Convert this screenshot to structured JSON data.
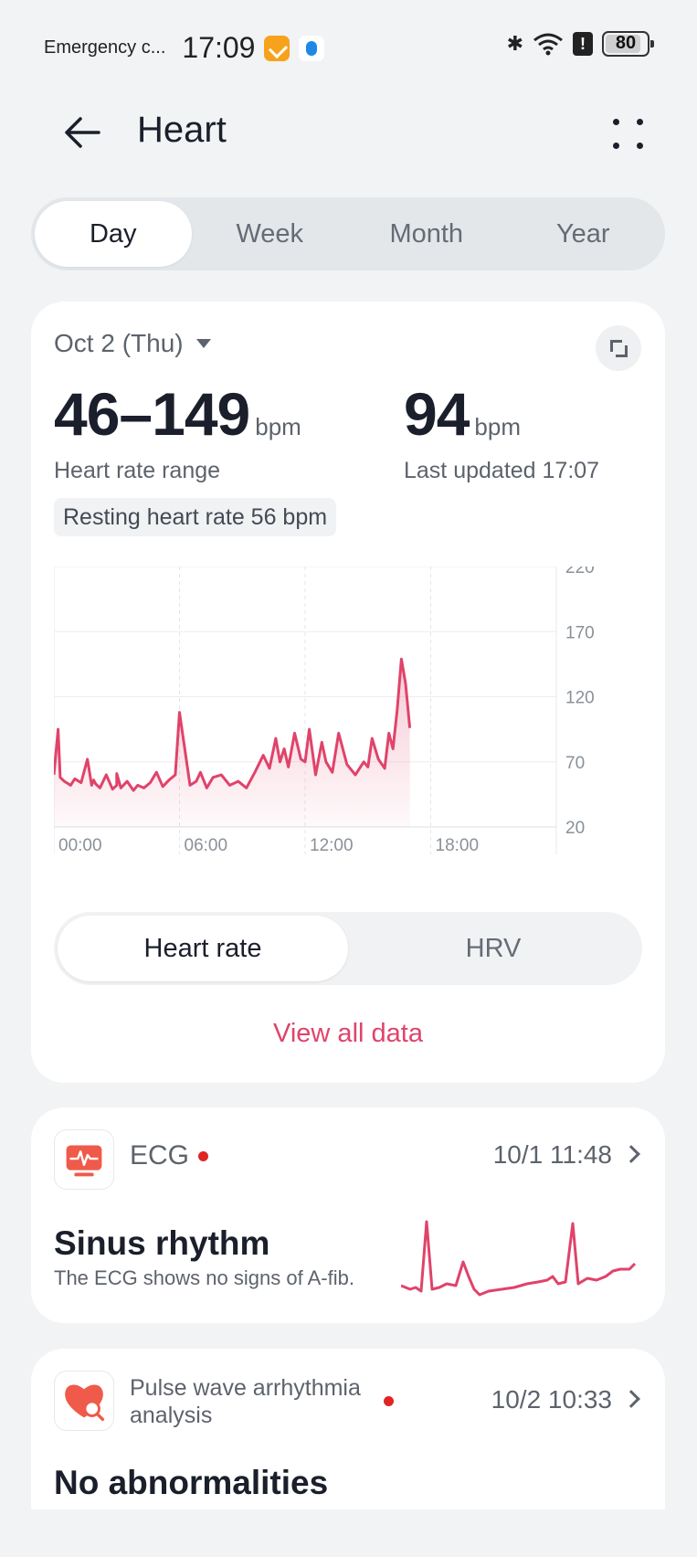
{
  "status_bar": {
    "carrier": "Emergency c...",
    "time": "17:09",
    "battery": "80"
  },
  "header": {
    "title": "Heart"
  },
  "period_tabs": [
    {
      "label": "Day",
      "active": true
    },
    {
      "label": "Week",
      "active": false
    },
    {
      "label": "Month",
      "active": false
    },
    {
      "label": "Year",
      "active": false
    }
  ],
  "summary": {
    "date": "Oct 2 (Thu)",
    "range_value": "46–149",
    "range_unit": "bpm",
    "range_label": "Heart rate range",
    "latest_value": "94",
    "latest_unit": "bpm",
    "latest_label": "Last updated 17:07",
    "resting": "Resting heart rate 56 bpm"
  },
  "chart_data": {
    "type": "area",
    "x_ticks": [
      "00:00",
      "06:00",
      "12:00",
      "18:00"
    ],
    "y_ticks": [
      220,
      170,
      120,
      70,
      20
    ],
    "ylim": [
      20,
      220
    ],
    "xlim_hours": [
      0,
      24
    ],
    "x_hours": [
      0,
      0.2,
      0.3,
      0.5,
      0.8,
      1.0,
      1.3,
      1.6,
      1.8,
      1.9,
      2.0,
      2.2,
      2.5,
      2.8,
      3.0,
      3.0,
      3.2,
      3.5,
      3.8,
      4.0,
      4.3,
      4.6,
      4.9,
      5.2,
      5.5,
      5.8,
      6.0,
      6.5,
      6.8,
      7.0,
      7.3,
      7.6,
      8.0,
      8.4,
      8.8,
      9.2,
      9.6,
      10.0,
      10.3,
      10.6,
      10.8,
      11.0,
      11.2,
      11.5,
      11.8,
      12.0,
      12.2,
      12.5,
      12.8,
      13.0,
      13.3,
      13.6,
      14.0,
      14.4,
      14.8,
      15.0,
      15.2,
      15.5,
      15.8,
      16.0,
      16.2,
      16.4,
      16.6,
      16.8,
      17.0
    ],
    "values": [
      60,
      95,
      58,
      55,
      52,
      57,
      54,
      72,
      52,
      56,
      53,
      50,
      60,
      49,
      52,
      61,
      50,
      55,
      48,
      52,
      50,
      54,
      62,
      51,
      56,
      60,
      108,
      52,
      55,
      62,
      50,
      58,
      60,
      52,
      55,
      50,
      62,
      75,
      65,
      88,
      70,
      80,
      66,
      92,
      72,
      70,
      95,
      60,
      85,
      70,
      62,
      92,
      68,
      60,
      70,
      66,
      88,
      72,
      65,
      92,
      80,
      110,
      149,
      130,
      96
    ],
    "color": "#e0436a"
  },
  "metric_toggle": {
    "options": [
      {
        "label": "Heart rate",
        "active": true
      },
      {
        "label": "HRV",
        "active": false
      }
    ]
  },
  "view_all_label": "View all data",
  "ecg_card": {
    "title": "ECG",
    "time": "10/1 11:48",
    "headline": "Sinus rhythm",
    "subtitle": "The ECG shows no signs of A-fib."
  },
  "pulse_card": {
    "title": "Pulse wave arrhythmia analysis",
    "time": "10/2 10:33",
    "headline": "No abnormalities"
  },
  "colors": {
    "accent": "#e0436a",
    "background": "#f1f3f5",
    "card": "#ffffff"
  }
}
